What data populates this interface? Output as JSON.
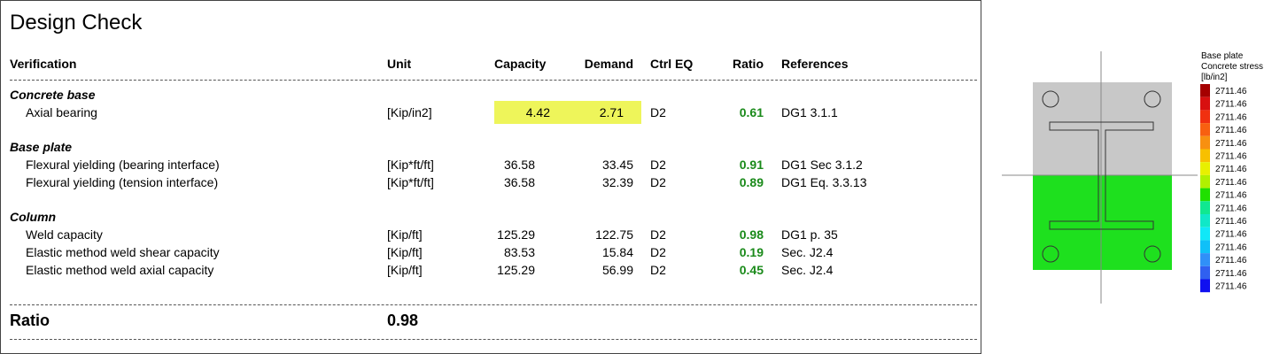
{
  "title": "Design Check",
  "table": {
    "headers": [
      "Verification",
      "Unit",
      "Capacity",
      "Demand",
      "Ctrl EQ",
      "Ratio",
      "References"
    ],
    "sections": [
      {
        "name": "Concrete base",
        "rows": [
          [
            "Axial bearing",
            "[Kip/in2]",
            "4.42",
            "2.71",
            "D2",
            "0.61",
            "DG1 3.1.1"
          ]
        ]
      },
      {
        "name": "Base plate",
        "rows": [
          [
            "Flexural yielding (bearing interface)",
            "[Kip*ft/ft]",
            "36.58",
            "33.45",
            "D2",
            "0.91",
            "DG1 Sec 3.1.2"
          ],
          [
            "Flexural yielding (tension interface)",
            "[Kip*ft/ft]",
            "36.58",
            "32.39",
            "D2",
            "0.89",
            "DG1 Eq. 3.3.13"
          ]
        ]
      },
      {
        "name": "Column",
        "rows": [
          [
            "Weld capacity",
            "[Kip/ft]",
            "125.29",
            "122.75",
            "D2",
            "0.98",
            "DG1 p. 35"
          ],
          [
            "Elastic method weld shear capacity",
            "[Kip/ft]",
            "83.53",
            "15.84",
            "D2",
            "0.19",
            "Sec. J2.4"
          ],
          [
            "Elastic method weld axial capacity",
            "[Kip/ft]",
            "125.29",
            "56.99",
            "D2",
            "0.45",
            "Sec. J2.4"
          ]
        ]
      }
    ]
  },
  "summary": {
    "label": "Ratio",
    "value": "0.98"
  },
  "figure": {
    "legend_title": [
      "Base plate",
      "Concrete stress",
      "[lb/in2]"
    ],
    "legend_values": [
      "2711.46",
      "2711.46",
      "2711.46",
      "2711.46",
      "2711.46",
      "2711.46",
      "2711.46",
      "2711.46",
      "2711.46",
      "2711.46",
      "2711.46",
      "2711.46",
      "2711.46",
      "2711.46",
      "2711.46",
      "2711.46"
    ],
    "legend_colors": [
      "#a50000",
      "#d81010",
      "#f03010",
      "#f86010",
      "#f89010",
      "#f8c000",
      "#e8f000",
      "#b0f000",
      "#20e000",
      "#10e890",
      "#10e8c8",
      "#10e8f8",
      "#10c0f8",
      "#3090f8",
      "#3060f0",
      "#1010f0"
    ]
  }
}
